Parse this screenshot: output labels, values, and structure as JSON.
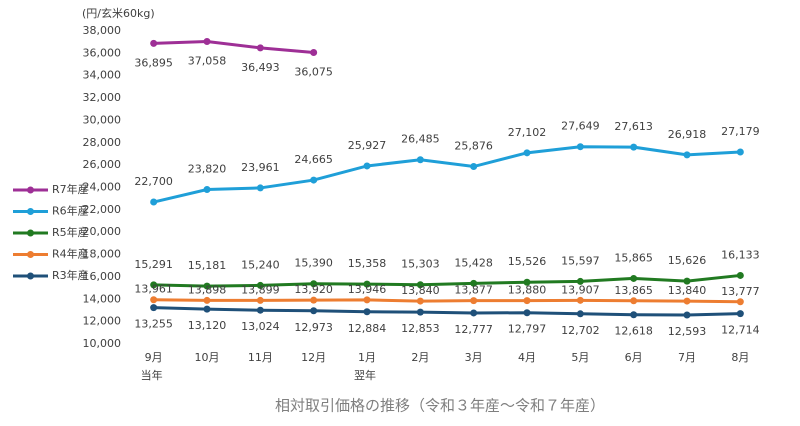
{
  "chart_data": {
    "type": "line",
    "title": "相対取引価格の推移（令和３年産～令和７年産）",
    "y_unit": "(円/玄米60kg)",
    "categories": [
      "9月",
      "10月",
      "11月",
      "12月",
      "1月",
      "2月",
      "3月",
      "4月",
      "5月",
      "6月",
      "7月",
      "8月"
    ],
    "x_sublabels": [
      "当年",
      null,
      null,
      null,
      "翌年",
      null,
      null,
      null,
      null,
      null,
      null,
      null
    ],
    "ylim": [
      10000,
      38000
    ],
    "yticks": [
      {
        "value": 10000,
        "label": "10,000"
      },
      {
        "value": 12000,
        "label": "12,000"
      },
      {
        "value": 14000,
        "label": "14,000"
      },
      {
        "value": 16000,
        "label": "16,000"
      },
      {
        "value": 18000,
        "label": "18,000"
      },
      {
        "value": 20000,
        "label": "20,000"
      },
      {
        "value": 22000,
        "label": "22,000"
      },
      {
        "value": 24000,
        "label": "24,000"
      },
      {
        "value": 26000,
        "label": "26,000"
      },
      {
        "value": 28000,
        "label": "28,000"
      },
      {
        "value": 30000,
        "label": "30,000"
      },
      {
        "value": 32000,
        "label": "32,000"
      },
      {
        "value": 34000,
        "label": "34,000"
      },
      {
        "value": 36000,
        "label": "36,000"
      },
      {
        "value": 38000,
        "label": "38,000"
      }
    ],
    "legend": "left",
    "series": [
      {
        "name": "R7年産",
        "color": "#9e2f96",
        "values": [
          36895,
          37058,
          36493,
          36075,
          null,
          null,
          null,
          null,
          null,
          null,
          null,
          null
        ],
        "value_labels": [
          "36,895",
          "37,058",
          "36,493",
          "36,075",
          null,
          null,
          null,
          null,
          null,
          null,
          null,
          null
        ]
      },
      {
        "name": "R6年産",
        "color": "#1f9fd8",
        "values": [
          22700,
          23820,
          23961,
          24665,
          25927,
          26485,
          25876,
          27102,
          27649,
          27613,
          26918,
          27179
        ],
        "value_labels": [
          "22,700",
          "23,820",
          "23,961",
          "24,665",
          "25,927",
          "26,485",
          "25,876",
          "27,102",
          "27,649",
          "27,613",
          "26,918",
          "27,179"
        ]
      },
      {
        "name": "R5年産",
        "color": "#217a21",
        "values": [
          15291,
          15181,
          15240,
          15390,
          15358,
          15303,
          15428,
          15526,
          15597,
          15865,
          15626,
          16133
        ],
        "value_labels": [
          "15,291",
          "15,181",
          "15,240",
          "15,390",
          "15,358",
          "15,303",
          "15,428",
          "15,526",
          "15,597",
          "15,865",
          "15,626",
          "16,133"
        ]
      },
      {
        "name": "R4年産",
        "color": "#ed7d31",
        "values": [
          13961,
          13898,
          13899,
          13920,
          13946,
          13840,
          13877,
          13880,
          13907,
          13865,
          13840,
          13777
        ],
        "value_labels": [
          "13,961",
          "13,898",
          "13,899",
          "13,920",
          "13,946",
          "13,840",
          "13,877",
          "13,880",
          "13,907",
          "13,865",
          "13,840",
          "13,777"
        ]
      },
      {
        "name": "R3年産",
        "color": "#1f5079",
        "values": [
          13255,
          13120,
          13024,
          12973,
          12884,
          12853,
          12777,
          12797,
          12702,
          12618,
          12593,
          12714
        ],
        "value_labels": [
          "13,255",
          "13,120",
          "13,024",
          "12,973",
          "12,884",
          "12,853",
          "12,777",
          "12,797",
          "12,702",
          "12,618",
          "12,593",
          "12,714"
        ]
      }
    ]
  }
}
